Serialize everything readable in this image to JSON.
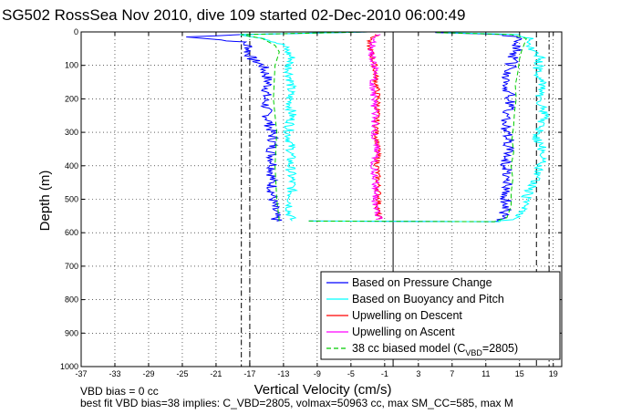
{
  "chart_data": {
    "type": "line",
    "title": "SG502 RossSea Nov 2010, dive 109 started 02-Dec-2010 06:00:49",
    "xlabel": "Vertical Velocity (cm/s)",
    "ylabel": "Depth (m)",
    "xlim": [
      -37,
      20
    ],
    "ylim": [
      1000,
      0
    ],
    "y_reversed": true,
    "x_ticks": [
      "-37",
      "-33",
      "-29",
      "-25",
      "-21",
      "-17",
      "-13",
      "-9",
      "-5",
      "-1",
      "3",
      "7",
      "11",
      "15",
      "19"
    ],
    "y_ticks": [
      "0",
      "100",
      "200",
      "300",
      "400",
      "500",
      "600",
      "700",
      "800",
      "900",
      "1000"
    ],
    "grid": true,
    "legend_position": "bottom-right",
    "footnote_1": "VBD bias = 0 cc",
    "footnote_2": "best fit VBD bias=38 implies: C_VBD=2805, volmax=50963 cc, max SM_CC=585, max M",
    "series": [
      {
        "name": "Based on Pressure Change",
        "color": "#0000ff",
        "dive": [
          [
            0,
            -3
          ],
          [
            8,
            -18
          ],
          [
            15,
            -24
          ],
          [
            30,
            -18
          ],
          [
            45,
            -17
          ],
          [
            60,
            -17.2
          ],
          [
            80,
            -16.8
          ],
          [
            100,
            -15.5
          ],
          [
            130,
            -15
          ],
          [
            160,
            -14.8
          ],
          [
            200,
            -15.2
          ],
          [
            240,
            -15
          ],
          [
            280,
            -14.6
          ],
          [
            320,
            -14.2
          ],
          [
            360,
            -14.4
          ],
          [
            400,
            -14.2
          ],
          [
            440,
            -14.4
          ],
          [
            480,
            -14.3
          ],
          [
            520,
            -14.2
          ],
          [
            550,
            -14
          ],
          [
            565,
            -13.8
          ]
        ],
        "climb": [
          [
            565,
            -10
          ],
          [
            567,
            12
          ],
          [
            555,
            13
          ],
          [
            520,
            13.5
          ],
          [
            480,
            13.2
          ],
          [
            440,
            13.8
          ],
          [
            400,
            13.4
          ],
          [
            360,
            13.6
          ],
          [
            320,
            13.7
          ],
          [
            280,
            13.2
          ],
          [
            240,
            13.6
          ],
          [
            200,
            14
          ],
          [
            160,
            13.4
          ],
          [
            120,
            13.8
          ],
          [
            80,
            14.2
          ],
          [
            60,
            14.5
          ],
          [
            40,
            14.8
          ],
          [
            20,
            15.2
          ],
          [
            8,
            13
          ],
          [
            2,
            5
          ]
        ]
      },
      {
        "name": "Based on Buoyancy and Pitch",
        "color": "#00ffff",
        "dive": [
          [
            0,
            -3
          ],
          [
            8,
            -18
          ],
          [
            20,
            -15
          ],
          [
            40,
            -13
          ],
          [
            60,
            -12.5
          ],
          [
            80,
            -12
          ],
          [
            100,
            -12.4
          ],
          [
            150,
            -12.1
          ],
          [
            200,
            -12.3
          ],
          [
            250,
            -12
          ],
          [
            300,
            -12.4
          ],
          [
            350,
            -12.1
          ],
          [
            400,
            -12.2
          ],
          [
            450,
            -12
          ],
          [
            500,
            -12.1
          ],
          [
            540,
            -12.3
          ],
          [
            565,
            -12
          ]
        ],
        "climb": [
          [
            565,
            -10
          ],
          [
            567,
            12.5
          ],
          [
            555,
            15
          ],
          [
            520,
            15.5
          ],
          [
            480,
            16
          ],
          [
            440,
            17
          ],
          [
            400,
            17.5
          ],
          [
            360,
            18
          ],
          [
            320,
            17
          ],
          [
            280,
            17.5
          ],
          [
            240,
            18
          ],
          [
            200,
            17.2
          ],
          [
            160,
            17.8
          ],
          [
            120,
            17
          ],
          [
            80,
            17.5
          ],
          [
            60,
            17
          ],
          [
            40,
            16
          ],
          [
            20,
            16.5
          ],
          [
            8,
            15
          ],
          [
            2,
            6
          ]
        ]
      },
      {
        "name": "Upwelling on Descent",
        "color": "#ff0000",
        "dive": [
          [
            8,
            -2
          ],
          [
            30,
            -3
          ],
          [
            60,
            -2.6
          ],
          [
            100,
            -2.2
          ],
          [
            150,
            -2
          ],
          [
            200,
            -1.8
          ],
          [
            250,
            -1.9
          ],
          [
            300,
            -2
          ],
          [
            350,
            -1.8
          ],
          [
            400,
            -1.9
          ],
          [
            450,
            -1.8
          ],
          [
            500,
            -1.7
          ],
          [
            540,
            -1.8
          ],
          [
            560,
            -1.6
          ]
        ]
      },
      {
        "name": "Upwelling on Ascent",
        "color": "#ff00ff",
        "climb": [
          [
            560,
            -1.6
          ],
          [
            540,
            -1.9
          ],
          [
            500,
            -2.2
          ],
          [
            450,
            -2
          ],
          [
            400,
            -2.3
          ],
          [
            350,
            -2
          ],
          [
            300,
            -2.2
          ],
          [
            250,
            -2.1
          ],
          [
            200,
            -2.3
          ],
          [
            150,
            -2.4
          ],
          [
            100,
            -2.2
          ],
          [
            60,
            -2.6
          ],
          [
            30,
            -2.4
          ],
          [
            8,
            -1.5
          ]
        ]
      },
      {
        "name": "38 cc biased model (C",
        "name_sub": "VBD",
        "name_tail": "=2805)",
        "color": "#00cc00",
        "dash": true,
        "dive": [
          [
            0,
            -3
          ],
          [
            8,
            -18
          ],
          [
            20,
            -15.5
          ],
          [
            40,
            -14
          ],
          [
            60,
            -13.5
          ],
          [
            100,
            -14
          ],
          [
            200,
            -14.2
          ],
          [
            300,
            -13.8
          ],
          [
            400,
            -14
          ],
          [
            500,
            -13.8
          ],
          [
            565,
            -13.5
          ]
        ],
        "climb": [
          [
            565,
            -10
          ],
          [
            567,
            12
          ],
          [
            555,
            13.5
          ],
          [
            520,
            14
          ],
          [
            480,
            14
          ],
          [
            440,
            14.2
          ],
          [
            400,
            14
          ],
          [
            360,
            14.3
          ],
          [
            320,
            14.1
          ],
          [
            280,
            14.3
          ],
          [
            240,
            14.4
          ],
          [
            200,
            14.6
          ],
          [
            160,
            14.5
          ],
          [
            120,
            14.8
          ],
          [
            80,
            15
          ],
          [
            60,
            15.2
          ],
          [
            40,
            15.5
          ],
          [
            20,
            15.8
          ],
          [
            8,
            14
          ],
          [
            2,
            5
          ]
        ]
      }
    ],
    "reference_lines": [
      {
        "x": -18,
        "style": "dashdot",
        "color": "#000000"
      },
      {
        "x": -17,
        "style": "dashed",
        "color": "#000000"
      },
      {
        "x": 0,
        "style": "solid",
        "color": "#000000"
      },
      {
        "x": 17,
        "style": "dashed",
        "color": "#000000"
      },
      {
        "x": 18.5,
        "style": "dashdot",
        "color": "#000000"
      }
    ]
  }
}
